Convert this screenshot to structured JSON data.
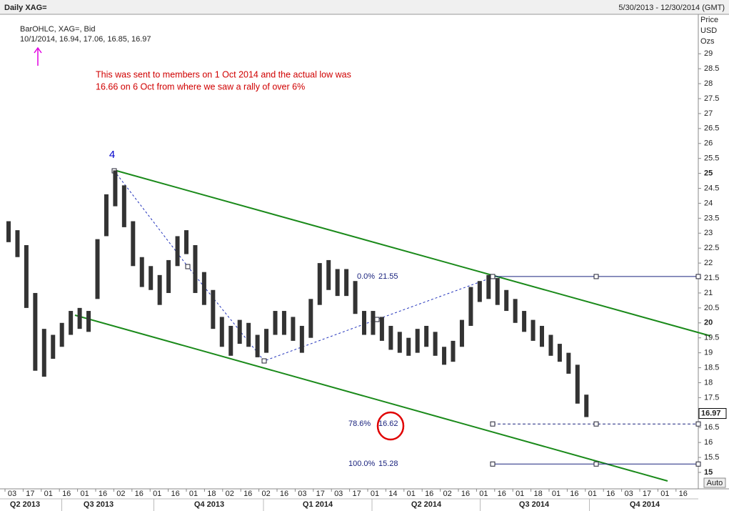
{
  "chart_data": {
    "type": "hilo",
    "title": "Daily XAG=",
    "date_range": "5/30/2013 - 12/30/2014 (GMT)",
    "legend_lines": [
      "BarOHLC, XAG=, Bid",
      "10/1/2014, 16.94, 17.06, 16.85, 16.97"
    ],
    "axis_label": [
      "Price",
      "USD",
      "Ozs"
    ],
    "annotation": [
      "This was sent to members on 1 Oct 2014 and the actual low was",
      "16.66 on 6 Oct from where we saw a rally of over 6%"
    ],
    "wave_label": "4",
    "auto_label": "Auto",
    "last": 16.97,
    "color": "#333333",
    "high": [
      23.4,
      23.1,
      22.6,
      21.0,
      19.8,
      19.6,
      20.0,
      20.4,
      20.5,
      20.4,
      22.8,
      24.3,
      25.1,
      24.6,
      23.4,
      22.2,
      21.9,
      21.6,
      22.1,
      22.9,
      23.1,
      22.6,
      21.7,
      21.1,
      20.2,
      19.9,
      20.1,
      20.0,
      19.6,
      19.8,
      20.4,
      20.4,
      20.2,
      19.9,
      20.8,
      22.0,
      22.1,
      21.8,
      21.8,
      21.4,
      20.4,
      20.4,
      20.2,
      19.9,
      19.7,
      19.5,
      19.8,
      19.9,
      19.7,
      19.2,
      19.4,
      20.1,
      21.2,
      21.4,
      21.6,
      21.5,
      21.1,
      20.8,
      20.4,
      20.1,
      19.9,
      19.6,
      19.3,
      19.0,
      18.6,
      17.6
    ],
    "low": [
      22.7,
      22.2,
      20.5,
      18.4,
      18.2,
      18.8,
      19.2,
      19.6,
      19.8,
      19.7,
      20.8,
      22.9,
      23.9,
      23.2,
      21.9,
      21.2,
      21.1,
      20.6,
      21.0,
      21.9,
      22.3,
      21.0,
      20.6,
      19.8,
      19.2,
      18.9,
      19.3,
      19.2,
      18.85,
      19.0,
      19.6,
      19.6,
      19.4,
      19.0,
      19.5,
      20.6,
      21.1,
      20.9,
      20.9,
      20.3,
      19.6,
      19.6,
      19.4,
      19.1,
      19.0,
      18.9,
      19.0,
      19.2,
      18.9,
      18.6,
      18.7,
      19.2,
      19.9,
      20.7,
      20.8,
      20.6,
      20.4,
      20.0,
      19.7,
      19.4,
      19.2,
      18.9,
      18.7,
      18.3,
      17.3,
      16.85
    ],
    "fib_levels": [
      {
        "pct": "0.0%",
        "price": 21.55,
        "style": "solid"
      },
      {
        "pct": "78.6%",
        "price": 16.62,
        "style": "dashed"
      },
      {
        "pct": "100.0%",
        "price": 15.28,
        "style": "solid"
      }
    ],
    "x_labels": [
      "03",
      "17",
      "01",
      "16",
      "01",
      "16",
      "02",
      "16",
      "01",
      "16",
      "01",
      "18",
      "02",
      "16",
      "02",
      "16",
      "03",
      "17",
      "03",
      "17",
      "01",
      "14",
      "01",
      "16",
      "02",
      "16",
      "01",
      "16",
      "01",
      "18",
      "01",
      "16",
      "01",
      "16",
      "03",
      "17",
      "01",
      "16"
    ],
    "quarters": [
      "Q2 2013",
      "Q3 2013",
      "Q4 2013",
      "Q1 2014",
      "Q2 2014",
      "Q3 2014",
      "Q4 2014"
    ],
    "ylim": [
      14.45,
      30.32
    ],
    "yticks": [
      15,
      15.5,
      16,
      16.5,
      17,
      17.5,
      18,
      18.5,
      19,
      19.5,
      20,
      20.5,
      21,
      21.5,
      22,
      22.5,
      23,
      23.5,
      24,
      24.5,
      25,
      25.5,
      26,
      26.5,
      27,
      27.5,
      28,
      28.5,
      29
    ]
  }
}
